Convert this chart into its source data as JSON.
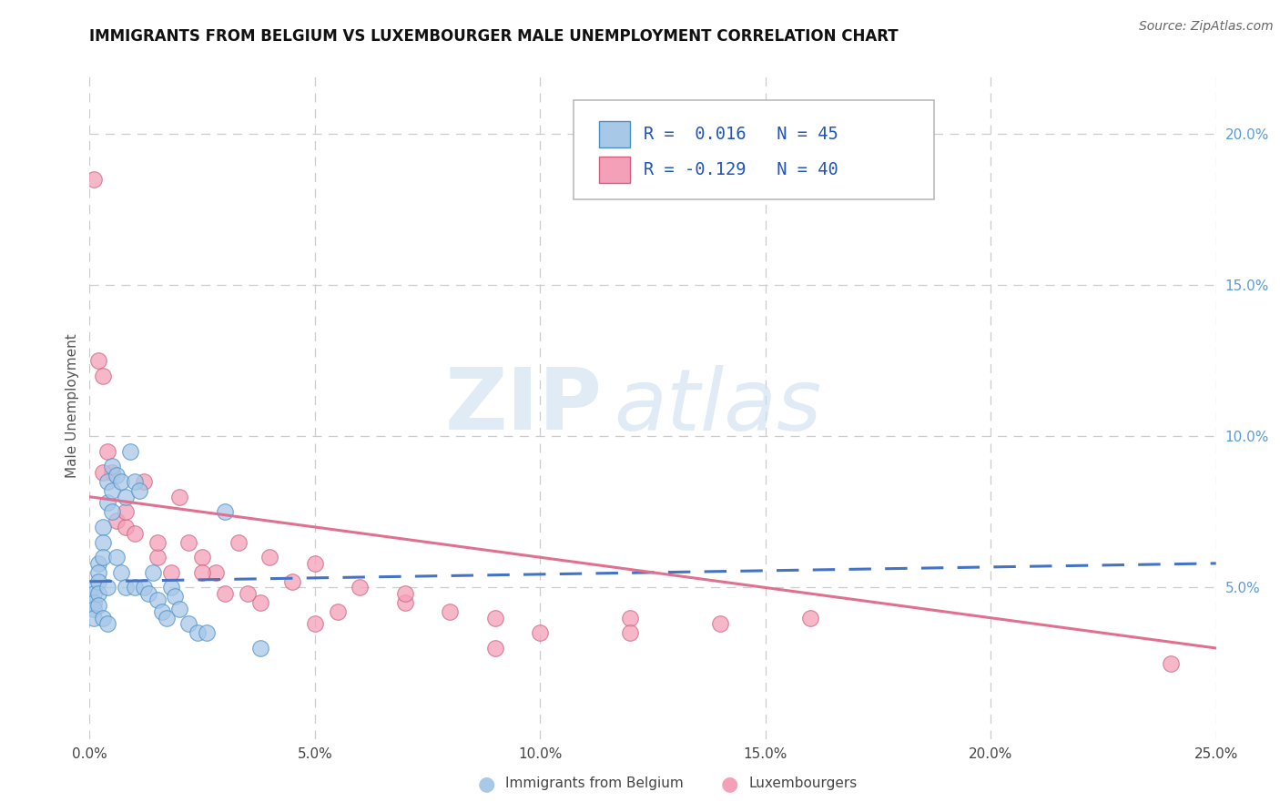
{
  "title": "IMMIGRANTS FROM BELGIUM VS LUXEMBOURGER MALE UNEMPLOYMENT CORRELATION CHART",
  "source": "Source: ZipAtlas.com",
  "ylabel": "Male Unemployment",
  "xlim": [
    0.0,
    0.25
  ],
  "ylim": [
    0.0,
    0.22
  ],
  "xticks": [
    0.0,
    0.05,
    0.1,
    0.15,
    0.2,
    0.25
  ],
  "xtick_labels": [
    "0.0%",
    "5.0%",
    "10.0%",
    "15.0%",
    "20.0%",
    "25.0%"
  ],
  "yticks_right": [
    0.05,
    0.1,
    0.15,
    0.2
  ],
  "ytick_labels_right": [
    "5.0%",
    "10.0%",
    "15.0%",
    "20.0%"
  ],
  "series1_label": "Immigrants from Belgium",
  "series2_label": "Luxembourgers",
  "series1_color": "#a8c8e8",
  "series1_edge": "#4a90c8",
  "series2_color": "#f4a0b8",
  "series2_edge": "#d06080",
  "trendline1_color": "#4472c4",
  "trendline2_color": "#e07090",
  "legend_r1": "R =  0.016",
  "legend_n1": "N = 45",
  "legend_r2": "R = -0.129",
  "legend_n2": "N = 40",
  "series1_x": [
    0.001,
    0.001,
    0.001,
    0.001,
    0.001,
    0.002,
    0.002,
    0.002,
    0.002,
    0.002,
    0.003,
    0.003,
    0.003,
    0.003,
    0.004,
    0.004,
    0.004,
    0.004,
    0.005,
    0.005,
    0.005,
    0.006,
    0.006,
    0.007,
    0.007,
    0.008,
    0.008,
    0.009,
    0.01,
    0.01,
    0.011,
    0.012,
    0.013,
    0.014,
    0.015,
    0.016,
    0.017,
    0.018,
    0.019,
    0.02,
    0.022,
    0.024,
    0.026,
    0.03,
    0.038
  ],
  "series1_y": [
    0.05,
    0.048,
    0.045,
    0.043,
    0.04,
    0.058,
    0.055,
    0.052,
    0.048,
    0.044,
    0.07,
    0.065,
    0.06,
    0.04,
    0.085,
    0.078,
    0.05,
    0.038,
    0.09,
    0.082,
    0.075,
    0.087,
    0.06,
    0.085,
    0.055,
    0.08,
    0.05,
    0.095,
    0.085,
    0.05,
    0.082,
    0.05,
    0.048,
    0.055,
    0.046,
    0.042,
    0.04,
    0.05,
    0.047,
    0.043,
    0.038,
    0.035,
    0.035,
    0.075,
    0.03
  ],
  "series2_x": [
    0.001,
    0.002,
    0.003,
    0.004,
    0.005,
    0.006,
    0.008,
    0.01,
    0.012,
    0.015,
    0.018,
    0.02,
    0.022,
    0.025,
    0.028,
    0.03,
    0.033,
    0.038,
    0.04,
    0.045,
    0.05,
    0.055,
    0.06,
    0.07,
    0.08,
    0.09,
    0.1,
    0.12,
    0.14,
    0.16,
    0.003,
    0.008,
    0.015,
    0.025,
    0.035,
    0.05,
    0.07,
    0.09,
    0.12,
    0.24
  ],
  "series2_y": [
    0.185,
    0.125,
    0.12,
    0.095,
    0.088,
    0.072,
    0.07,
    0.068,
    0.085,
    0.06,
    0.055,
    0.08,
    0.065,
    0.06,
    0.055,
    0.048,
    0.065,
    0.045,
    0.06,
    0.052,
    0.058,
    0.042,
    0.05,
    0.045,
    0.042,
    0.04,
    0.035,
    0.04,
    0.038,
    0.04,
    0.088,
    0.075,
    0.065,
    0.055,
    0.048,
    0.038,
    0.048,
    0.03,
    0.035,
    0.025
  ],
  "trendline1_x": [
    0.0,
    0.25
  ],
  "trendline1_y": [
    0.052,
    0.058
  ],
  "trendline2_x": [
    0.0,
    0.25
  ],
  "trendline2_y": [
    0.08,
    0.03
  ]
}
